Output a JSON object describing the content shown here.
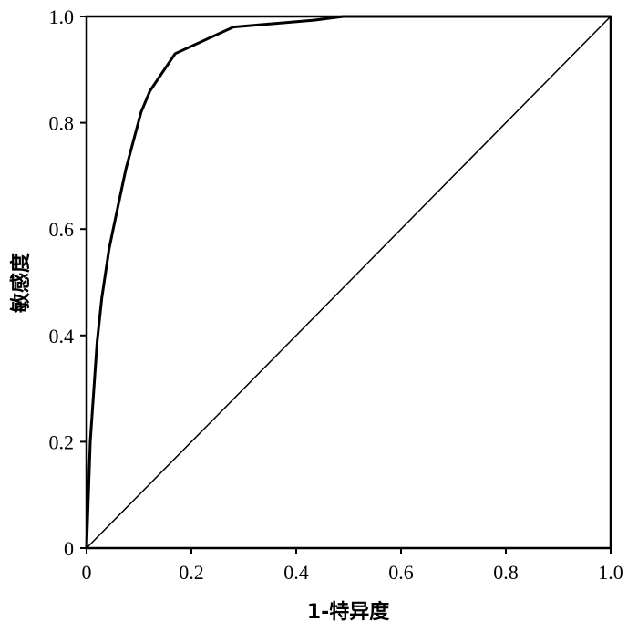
{
  "chart_data": {
    "type": "line",
    "title": "",
    "xlabel": "1-特异度",
    "ylabel": "敏感度",
    "xlim": [
      0,
      1
    ],
    "ylim": [
      0,
      1
    ],
    "xticks": [
      "0",
      "0.2",
      "0.4",
      "0.6",
      "0.8",
      "1.0"
    ],
    "yticks": [
      "0",
      "0.2",
      "0.4",
      "0.6",
      "0.8",
      "1.0"
    ],
    "grid": false,
    "series": [
      {
        "x": [
          0,
          0.007,
          0.02,
          0.029,
          0.043,
          0.055,
          0.075,
          0.104,
          0.121,
          0.169,
          0.28,
          0.434,
          0.49,
          1.0
        ],
        "y": [
          0,
          0.2,
          0.387,
          0.47,
          0.563,
          0.62,
          0.713,
          0.82,
          0.86,
          0.93,
          0.98,
          0.993,
          1.0,
          1.0
        ],
        "color": "#000000"
      },
      {
        "x": [
          0,
          1
        ],
        "y": [
          0,
          1
        ],
        "color": "#000000"
      }
    ]
  }
}
